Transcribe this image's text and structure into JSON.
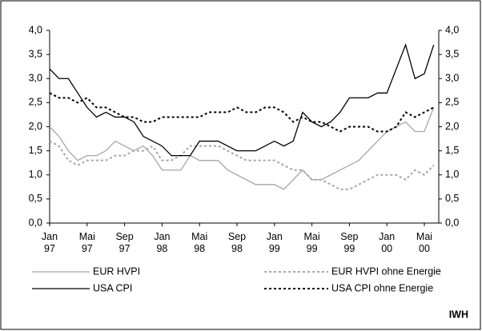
{
  "chart_data": {
    "type": "line",
    "categories": [
      "Jan 97",
      null,
      null,
      null,
      "Mai 97",
      null,
      null,
      null,
      "Sep 97",
      null,
      null,
      null,
      "Jan 98",
      null,
      null,
      null,
      "Mai 98",
      null,
      null,
      null,
      "Sep 98",
      null,
      null,
      null,
      "Jan 99",
      null,
      null,
      null,
      "Mai 99",
      null,
      null,
      null,
      "Sep 99",
      null,
      null,
      null,
      "Jan 00",
      null,
      null,
      null,
      "Mai 00",
      null
    ],
    "series": [
      {
        "name": "EUR HVPI",
        "color": "#a6a6a6",
        "dash": "solid",
        "values": [
          2.0,
          1.8,
          1.5,
          1.3,
          1.4,
          1.4,
          1.5,
          1.7,
          1.6,
          1.5,
          1.6,
          1.4,
          1.1,
          1.1,
          1.1,
          1.4,
          1.3,
          1.3,
          1.3,
          1.1,
          1.0,
          0.9,
          0.8,
          0.8,
          0.8,
          0.7,
          0.9,
          1.1,
          0.9,
          0.9,
          1.0,
          1.1,
          1.2,
          1.3,
          1.5,
          1.7,
          1.9,
          2.0,
          2.1,
          1.9,
          1.9,
          2.4
        ]
      },
      {
        "name": "EUR HVPI ohne Energie",
        "color": "#a6a6a6",
        "dash": "dotted",
        "values": [
          1.7,
          1.6,
          1.3,
          1.2,
          1.3,
          1.3,
          1.3,
          1.4,
          1.4,
          1.5,
          1.5,
          1.6,
          1.3,
          1.3,
          1.4,
          1.6,
          1.6,
          1.6,
          1.6,
          1.5,
          1.4,
          1.3,
          1.3,
          1.3,
          1.3,
          1.2,
          1.1,
          1.1,
          0.9,
          0.9,
          0.8,
          0.7,
          0.7,
          0.8,
          0.9,
          1.0,
          1.0,
          1.0,
          0.9,
          1.1,
          1.0,
          1.2
        ]
      },
      {
        "name": "USA CPI",
        "color": "#000000",
        "dash": "solid",
        "values": [
          3.2,
          3.0,
          3.0,
          2.7,
          2.4,
          2.2,
          2.3,
          2.2,
          2.2,
          2.1,
          1.8,
          1.7,
          1.6,
          1.4,
          1.4,
          1.4,
          1.7,
          1.7,
          1.7,
          1.6,
          1.5,
          1.5,
          1.5,
          1.6,
          1.7,
          1.6,
          1.7,
          2.3,
          2.1,
          2.0,
          2.1,
          2.3,
          2.6,
          2.6,
          2.6,
          2.7,
          2.7,
          3.2,
          3.7,
          3.0,
          3.1,
          3.7
        ]
      },
      {
        "name": "USA CPI ohne Energie",
        "color": "#000000",
        "dash": "dotted",
        "values": [
          2.7,
          2.6,
          2.6,
          2.5,
          2.6,
          2.4,
          2.4,
          2.3,
          2.2,
          2.2,
          2.1,
          2.1,
          2.2,
          2.2,
          2.2,
          2.2,
          2.2,
          2.3,
          2.3,
          2.3,
          2.4,
          2.3,
          2.3,
          2.4,
          2.4,
          2.3,
          2.1,
          2.2,
          2.1,
          2.1,
          2.0,
          1.9,
          2.0,
          2.0,
          2.0,
          1.9,
          1.9,
          2.0,
          2.3,
          2.2,
          2.3,
          2.4
        ]
      }
    ],
    "ylim": [
      0,
      4
    ],
    "yticks": [
      {
        "value": 0,
        "label": "0,0"
      },
      {
        "value": 0.5,
        "label": "0,5"
      },
      {
        "value": 1,
        "label": "1,0"
      },
      {
        "value": 1.5,
        "label": "1,5"
      },
      {
        "value": 2,
        "label": "2,0"
      },
      {
        "value": 2.5,
        "label": "2,5"
      },
      {
        "value": 3,
        "label": "3,0"
      },
      {
        "value": 3.5,
        "label": "3,5"
      },
      {
        "value": 4,
        "label": "4,0"
      }
    ],
    "y2lim": [
      0,
      4
    ],
    "y2ticks": [
      {
        "value": 0,
        "label": "0,0"
      },
      {
        "value": 0.5,
        "label": "0,5"
      },
      {
        "value": 1,
        "label": "1,0"
      },
      {
        "value": 1.5,
        "label": "1,5"
      },
      {
        "value": 2,
        "label": "2,0"
      },
      {
        "value": 2.5,
        "label": "2,5"
      },
      {
        "value": 3,
        "label": "3,0"
      },
      {
        "value": 3.5,
        "label": "3,5"
      },
      {
        "value": 4,
        "label": "4,0"
      }
    ],
    "source": "IWH"
  }
}
